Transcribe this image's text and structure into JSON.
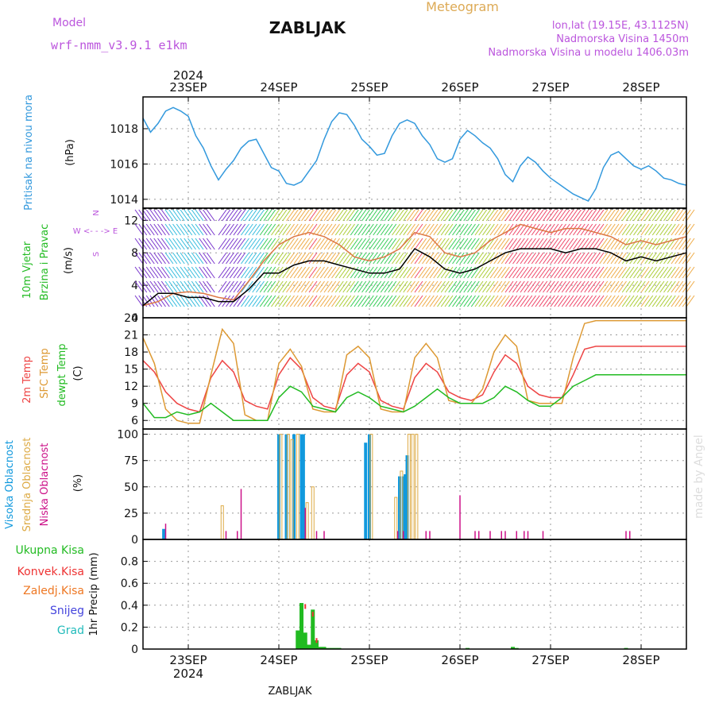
{
  "header": {
    "model_label": "Model",
    "model_name": "wrf-nmm_v3.9.1  e1km",
    "title": "ZABLJAK",
    "meteogram": "Meteogram",
    "lonlat": "lon,lat (19.15E, 43.1125N)",
    "elevation": "Nadmorska Visina 1450m",
    "model_elevation": "Nadmorska Visina u modelu 1406.03m",
    "year": "2024",
    "footer_title": "ZABLJAK",
    "credit": "made by Angel"
  },
  "colors": {
    "pressure": "#3399dd",
    "temp2m": "#ee4444",
    "sfc": "#dd9933",
    "dewpt": "#22bb22",
    "high_cloud": "#1199dd",
    "mid_cloud": "#ddaa44",
    "low_cloud": "#cc1188",
    "total_precip": "#22bb22",
    "conv_precip": "#ee3333",
    "frozen_precip": "#ee7722",
    "snow": "#4444dd",
    "hail": "#22bbbb",
    "gust": "#000000"
  },
  "x_axis": {
    "range": [
      0,
      144
    ],
    "days": [
      {
        "label": "23SEP",
        "hour": 12
      },
      {
        "label": "24SEP",
        "hour": 36
      },
      {
        "label": "25SEP",
        "hour": 60
      },
      {
        "label": "26SEP",
        "hour": 84
      },
      {
        "label": "27SEP",
        "hour": 108
      },
      {
        "label": "28SEP",
        "hour": 132
      }
    ]
  },
  "chart_data": [
    {
      "type": "line",
      "ylabel_left": "Pritisak na nivou mora",
      "ylabel_unit": "(hPa)",
      "ylim": [
        1013.5,
        1019.8
      ],
      "yticks": [
        1014,
        1016,
        1018
      ],
      "series": [
        {
          "key": "pressure",
          "x": [
            0,
            2,
            4,
            6,
            8,
            10,
            12,
            14,
            16,
            18,
            20,
            22,
            24,
            26,
            28,
            30,
            32,
            34,
            36,
            38,
            40,
            42,
            44,
            46,
            48,
            50,
            52,
            54,
            56,
            58,
            60,
            62,
            64,
            66,
            68,
            70,
            72,
            74,
            76,
            78,
            80,
            82,
            84,
            86,
            88,
            90,
            92,
            94,
            96,
            98,
            100,
            102,
            104,
            106,
            108,
            110,
            112,
            114,
            116,
            118,
            120,
            122,
            124,
            126,
            128,
            130,
            132,
            134,
            136,
            138,
            140,
            142,
            144
          ],
          "values": [
            1018.6,
            1017.8,
            1018.3,
            1019.0,
            1019.2,
            1019.0,
            1018.7,
            1017.6,
            1016.9,
            1015.9,
            1015.1,
            1015.7,
            1016.2,
            1016.9,
            1017.3,
            1017.4,
            1016.6,
            1015.8,
            1015.6,
            1014.9,
            1014.8,
            1015.0,
            1015.6,
            1016.2,
            1017.4,
            1018.4,
            1018.9,
            1018.8,
            1018.2,
            1017.4,
            1017.0,
            1016.5,
            1016.6,
            1017.6,
            1018.3,
            1018.5,
            1018.3,
            1017.6,
            1017.1,
            1016.3,
            1016.1,
            1016.3,
            1017.4,
            1017.9,
            1017.6,
            1017.2,
            1016.9,
            1016.3,
            1015.4,
            1015.0,
            1015.9,
            1016.4,
            1016.1,
            1015.6,
            1015.2,
            1014.9,
            1014.6,
            1014.3,
            1014.1,
            1013.9,
            1014.6,
            1015.8,
            1016.5,
            1016.7,
            1016.3,
            1015.9,
            1015.7,
            1015.9,
            1015.6,
            1015.2,
            1015.1,
            1014.9,
            1014.8
          ]
        }
      ]
    },
    {
      "type": "line",
      "ylabel_left_1": "10m Vjetar",
      "ylabel_left_2": "Brzina i Pravac",
      "ylabel_unit": "(m/s)",
      "compass": [
        "W <- - -> E",
        "N",
        "S"
      ],
      "ylim": [
        0,
        13.5
      ],
      "yticks": [
        0,
        4,
        8,
        12
      ],
      "series": [
        {
          "key": "wind_speed",
          "name": "",
          "x": [
            0,
            4,
            8,
            12,
            16,
            20,
            24,
            28,
            32,
            36,
            40,
            44,
            48,
            52,
            56,
            60,
            64,
            68,
            72,
            76,
            80,
            84,
            88,
            92,
            96,
            100,
            104,
            108,
            112,
            116,
            120,
            124,
            128,
            132,
            136,
            140,
            144
          ],
          "values": [
            1.5,
            2.0,
            3.0,
            3.2,
            3.0,
            2.5,
            2.2,
            4.5,
            7.0,
            9.0,
            10.0,
            10.5,
            10.0,
            9.0,
            7.5,
            7.0,
            7.5,
            8.5,
            10.5,
            10.0,
            8.0,
            7.5,
            8.0,
            9.5,
            10.5,
            11.5,
            11.0,
            10.5,
            11.0,
            11.0,
            10.5,
            10.0,
            9.0,
            9.5,
            9.0,
            9.5,
            10.0
          ]
        },
        {
          "key": "gust",
          "name": "",
          "x": [
            0,
            4,
            8,
            12,
            16,
            20,
            24,
            28,
            32,
            36,
            40,
            44,
            48,
            52,
            56,
            60,
            64,
            68,
            72,
            76,
            80,
            84,
            88,
            92,
            96,
            100,
            104,
            108,
            112,
            116,
            120,
            124,
            128,
            132,
            136,
            140,
            144
          ],
          "values": [
            1.5,
            3.0,
            3.0,
            2.5,
            2.5,
            2.0,
            2.0,
            3.5,
            5.5,
            5.5,
            6.5,
            7.0,
            7.0,
            6.5,
            6.0,
            5.5,
            5.5,
            6.0,
            8.5,
            7.5,
            6.0,
            5.5,
            6.0,
            7.0,
            8.0,
            8.5,
            8.5,
            8.5,
            8.0,
            8.5,
            8.5,
            8.0,
            7.0,
            7.5,
            7.0,
            7.5,
            8.0
          ]
        }
      ]
    },
    {
      "type": "line",
      "ylabel_left_1": "2m Temp",
      "ylabel_left_2": "SFC Temp",
      "ylabel_left_3": "dewpt Temp",
      "ylabel_unit": "(C)",
      "ylim": [
        4.5,
        24
      ],
      "yticks": [
        6,
        9,
        12,
        15,
        18,
        21,
        24
      ],
      "series": [
        {
          "key": "temp2m",
          "x": [
            0,
            3,
            6,
            9,
            12,
            15,
            18,
            21,
            24,
            27,
            30,
            33,
            36,
            39,
            42,
            45,
            48,
            51,
            54,
            57,
            60,
            63,
            66,
            69,
            72,
            75,
            78,
            81,
            84,
            87,
            90,
            93,
            96,
            99,
            102,
            105,
            108,
            111,
            114,
            117,
            120,
            123,
            126,
            129,
            132,
            135,
            138,
            141,
            144
          ],
          "values": [
            16.5,
            14.5,
            11.0,
            9.0,
            8.0,
            7.5,
            13.5,
            16.5,
            14.5,
            9.5,
            8.5,
            8.0,
            14.0,
            17.0,
            15.0,
            10.0,
            8.5,
            8.0,
            14.0,
            16.0,
            14.5,
            9.5,
            8.5,
            8.0,
            13.5,
            16.0,
            14.5,
            11.0,
            10.0,
            9.5,
            10.5,
            14.5,
            17.5,
            16.0,
            12.0,
            10.5,
            10.0,
            10.0,
            14.0,
            18.5,
            19.0,
            19.0,
            19.0,
            19.0,
            19.0,
            19.0,
            19.0,
            19.0,
            19.0
          ]
        },
        {
          "key": "sfc",
          "x": [
            0,
            3,
            6,
            9,
            12,
            15,
            18,
            21,
            24,
            27,
            30,
            33,
            36,
            39,
            42,
            45,
            48,
            51,
            54,
            57,
            60,
            63,
            66,
            69,
            72,
            75,
            78,
            81,
            84,
            87,
            90,
            93,
            96,
            99,
            102,
            105,
            108,
            111,
            114,
            117,
            120,
            123,
            126,
            129,
            132,
            135,
            138,
            141,
            144
          ],
          "values": [
            20.5,
            16.0,
            8.0,
            6.0,
            5.5,
            5.5,
            14.0,
            22.0,
            19.5,
            7.0,
            6.0,
            6.0,
            16.0,
            18.5,
            15.5,
            8.0,
            7.5,
            7.5,
            17.5,
            19.0,
            17.0,
            8.0,
            7.5,
            7.5,
            17.0,
            19.5,
            17.0,
            9.5,
            9.0,
            9.0,
            11.5,
            18.0,
            21.0,
            19.0,
            9.5,
            9.0,
            9.0,
            9.0,
            17.0,
            23.0,
            23.5,
            23.5,
            23.5,
            23.5,
            23.5,
            23.5,
            23.5,
            23.5,
            23.5
          ]
        },
        {
          "key": "dewpt",
          "x": [
            0,
            3,
            6,
            9,
            12,
            15,
            18,
            21,
            24,
            27,
            30,
            33,
            36,
            39,
            42,
            45,
            48,
            51,
            54,
            57,
            60,
            63,
            66,
            69,
            72,
            75,
            78,
            81,
            84,
            87,
            90,
            93,
            96,
            99,
            102,
            105,
            108,
            111,
            114,
            117,
            120,
            123,
            126,
            129,
            132,
            135,
            138,
            141,
            144
          ],
          "values": [
            9.0,
            6.5,
            6.5,
            7.5,
            7.0,
            7.5,
            9.0,
            7.5,
            6.0,
            6.0,
            6.0,
            6.0,
            10.0,
            12.0,
            11.0,
            8.5,
            8.0,
            7.5,
            10.0,
            11.0,
            10.0,
            8.5,
            8.0,
            7.5,
            8.5,
            10.0,
            11.5,
            10.0,
            9.0,
            9.0,
            9.0,
            10.0,
            12.0,
            11.0,
            9.5,
            8.5,
            8.5,
            10.0,
            12.0,
            13.0,
            14.0,
            14.0,
            14.0,
            14.0,
            14.0,
            14.0,
            14.0,
            14.0,
            14.0
          ]
        }
      ]
    },
    {
      "type": "bar",
      "ylabel_left_1": "Visoka Oblacnost",
      "ylabel_left_2": "Srednja Oblacnost",
      "ylabel_left_3": "Niska Oblacnost",
      "ylabel_unit": "(%)",
      "ylim": [
        0,
        105
      ],
      "yticks": [
        0,
        25,
        50,
        75,
        100
      ],
      "series": [
        {
          "key": "high_cloud",
          "x": [
            5.5,
            36.0,
            38.0,
            40.0,
            42.0,
            42.5,
            59.0,
            60.0,
            68.0,
            69.0,
            69.5,
            70.0
          ],
          "values": [
            10,
            100,
            100,
            100,
            100,
            100,
            92,
            100,
            60,
            60,
            62,
            80
          ]
        },
        {
          "key": "mid_cloud",
          "x": [
            21.0,
            36.5,
            38.5,
            39.5,
            41.0,
            43.5,
            45.0,
            60.5,
            67.0,
            68.5,
            70.5,
            71.5,
            72.5
          ],
          "values": [
            32,
            100,
            100,
            95,
            100,
            35,
            50,
            100,
            40,
            65,
            100,
            100,
            100
          ]
        },
        {
          "key": "low_cloud",
          "x": [
            6.0,
            22.0,
            25.0,
            26.0,
            43.0,
            46.0,
            48.0,
            67.5,
            69.0,
            75.0,
            76.0,
            84.0,
            88.0,
            89.0,
            92.0,
            95.0,
            96.0,
            99.0,
            101.0,
            102.0,
            106.0,
            128.0,
            129.0
          ],
          "values": [
            15,
            8,
            8,
            48,
            30,
            8,
            8,
            8,
            8,
            8,
            8,
            42,
            8,
            8,
            8,
            8,
            8,
            8,
            8,
            8,
            8,
            8,
            8
          ]
        }
      ]
    },
    {
      "type": "bar",
      "ylabel_left_1": "Ukupna  Kisa",
      "ylabel_left_2": "Konvek.Kisa",
      "ylabel_left_3": "Zaledj.Kisa",
      "ylabel_left_4": "Snijeg",
      "ylabel_left_5": "Grad",
      "ylabel_unit": "1hr Precip (mm)",
      "ylim": [
        0,
        1.0
      ],
      "yticks": [
        0,
        0.2,
        0.4,
        0.6,
        0.8
      ],
      "series": [
        {
          "key": "total_precip",
          "x": [
            41,
            42,
            43,
            44,
            45,
            46,
            47,
            48,
            49,
            50,
            51,
            52,
            86,
            98,
            99,
            128
          ],
          "values": [
            0.17,
            0.42,
            0.15,
            0.04,
            0.36,
            0.08,
            0.02,
            0.02,
            0.01,
            0.01,
            0.01,
            0.01,
            0.01,
            0.02,
            0.01,
            0.01
          ]
        },
        {
          "key": "conv_precip",
          "x": [
            43,
            45,
            46
          ],
          "values": [
            0.41,
            0.34,
            0.1
          ]
        }
      ]
    }
  ]
}
